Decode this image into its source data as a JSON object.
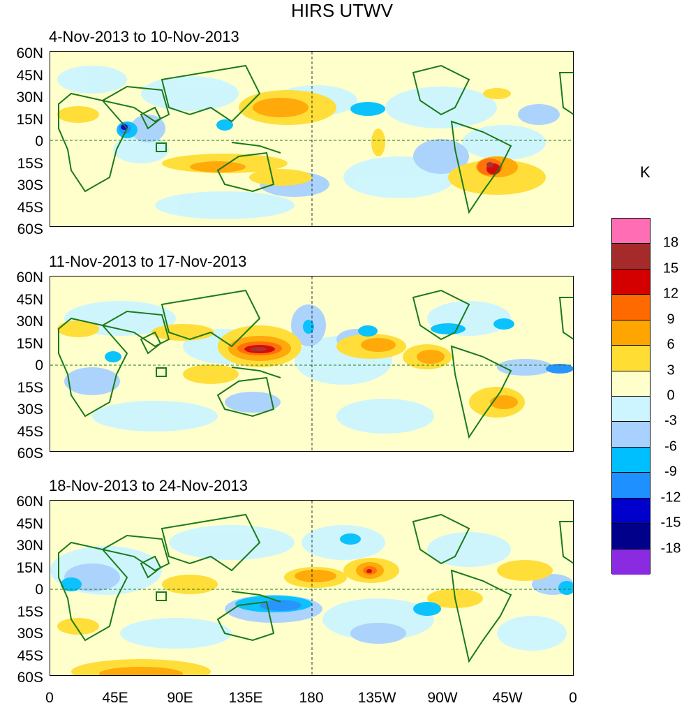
{
  "title": "HIRS UTWV",
  "panels": [
    {
      "label": "4-Nov-2013 to 10-Nov-2013"
    },
    {
      "label": "11-Nov-2013 to 17-Nov-2013"
    },
    {
      "label": "18-Nov-2013 to 24-Nov-2013"
    }
  ],
  "y_ticks": [
    "60N",
    "45N",
    "30N",
    "15N",
    "0",
    "15S",
    "30S",
    "45S",
    "60S"
  ],
  "x_ticks": [
    "0",
    "45E",
    "90E",
    "135E",
    "180",
    "135W",
    "90W",
    "45W",
    "0"
  ],
  "colorbar": {
    "unit": "K",
    "labels": [
      "18",
      "15",
      "12",
      "9",
      "6",
      "3",
      "0",
      "-3",
      "-6",
      "-9",
      "-12",
      "-15",
      "-18"
    ],
    "colors": [
      "#ff6eb4",
      "#a52a2a",
      "#d40000",
      "#ff6a00",
      "#ffa500",
      "#ffdd33",
      "#ffffcc",
      "#ccf5ff",
      "#a8d1ff",
      "#00bfff",
      "#1e90ff",
      "#0000cd",
      "#00008b",
      "#8a2be2"
    ]
  }
}
